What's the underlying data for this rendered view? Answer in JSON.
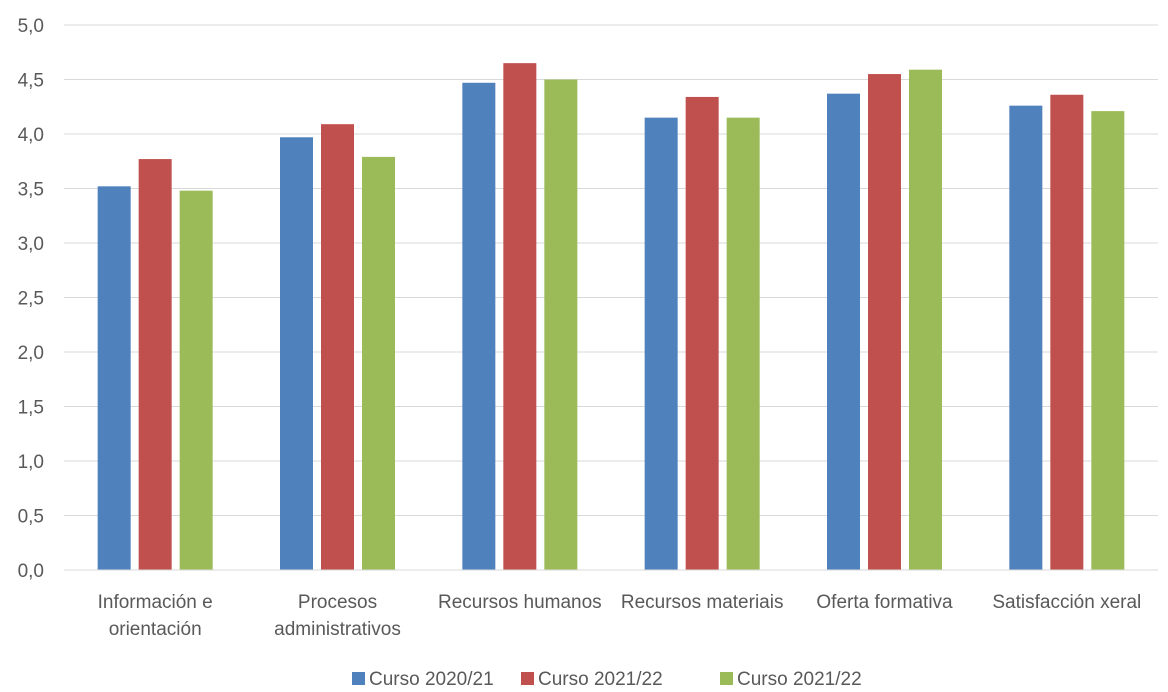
{
  "chart_data": {
    "type": "bar",
    "title": "",
    "xlabel": "",
    "ylabel": "",
    "categories": [
      [
        "Información e",
        "orientación"
      ],
      [
        "Procesos",
        "administrativos"
      ],
      [
        "Recursos humanos"
      ],
      [
        "Recursos materiais"
      ],
      [
        "Oferta formativa"
      ],
      [
        "Satisfacción xeral"
      ]
    ],
    "series": [
      {
        "name": "Curso 2020/21",
        "color": "#4f81bd",
        "values": [
          3.52,
          3.97,
          4.47,
          4.15,
          4.37,
          4.26
        ]
      },
      {
        "name": "Curso 2021/22",
        "color": "#c0504d",
        "values": [
          3.77,
          4.09,
          4.65,
          4.34,
          4.55,
          4.36
        ]
      },
      {
        "name": "Curso 2021/22",
        "color": "#9bbb59",
        "values": [
          3.48,
          3.79,
          4.5,
          4.15,
          4.59,
          4.21
        ]
      }
    ],
    "ylim": [
      0,
      5
    ],
    "yticks": [
      "0,0",
      "0,5",
      "1,0",
      "1,5",
      "2,0",
      "2,5",
      "3,0",
      "3,5",
      "4,0",
      "4,5",
      "5,0"
    ],
    "grid": true,
    "legend_position": "bottom"
  }
}
